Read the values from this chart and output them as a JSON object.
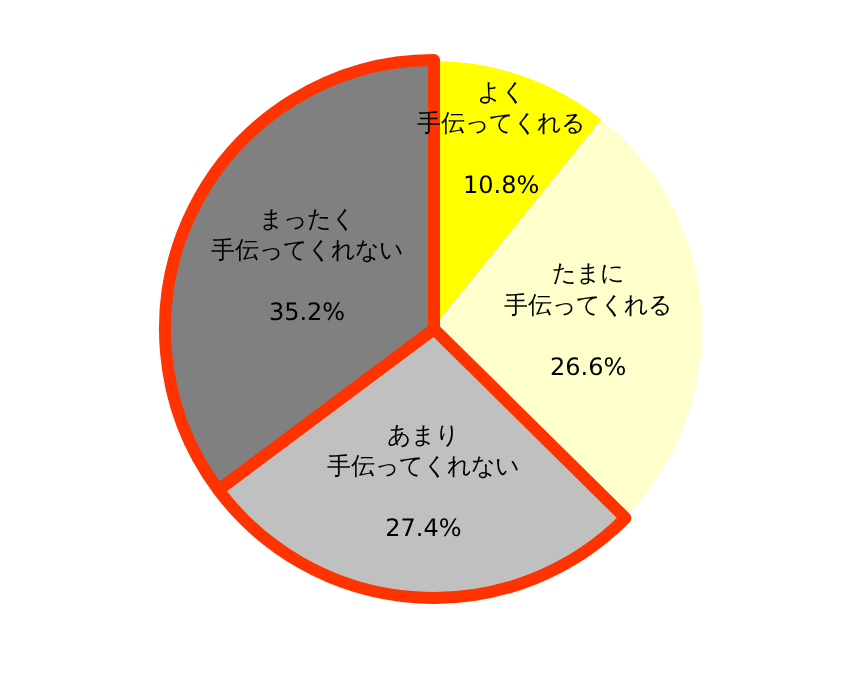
{
  "chart_data": {
    "type": "pie",
    "categories": [
      "よく手伝ってくれる",
      "たまに手伝ってくれる",
      "あまり手伝ってくれない",
      "まったく手伝ってくれない"
    ],
    "values": [
      10.8,
      26.6,
      27.4,
      35.2
    ],
    "colors": [
      "#ffff00",
      "#ffffcc",
      "#c0c0c0",
      "#808080"
    ],
    "value_labels": [
      "10.8%",
      "26.6%",
      "27.4%",
      "35.2%"
    ],
    "legend": false
  }
}
